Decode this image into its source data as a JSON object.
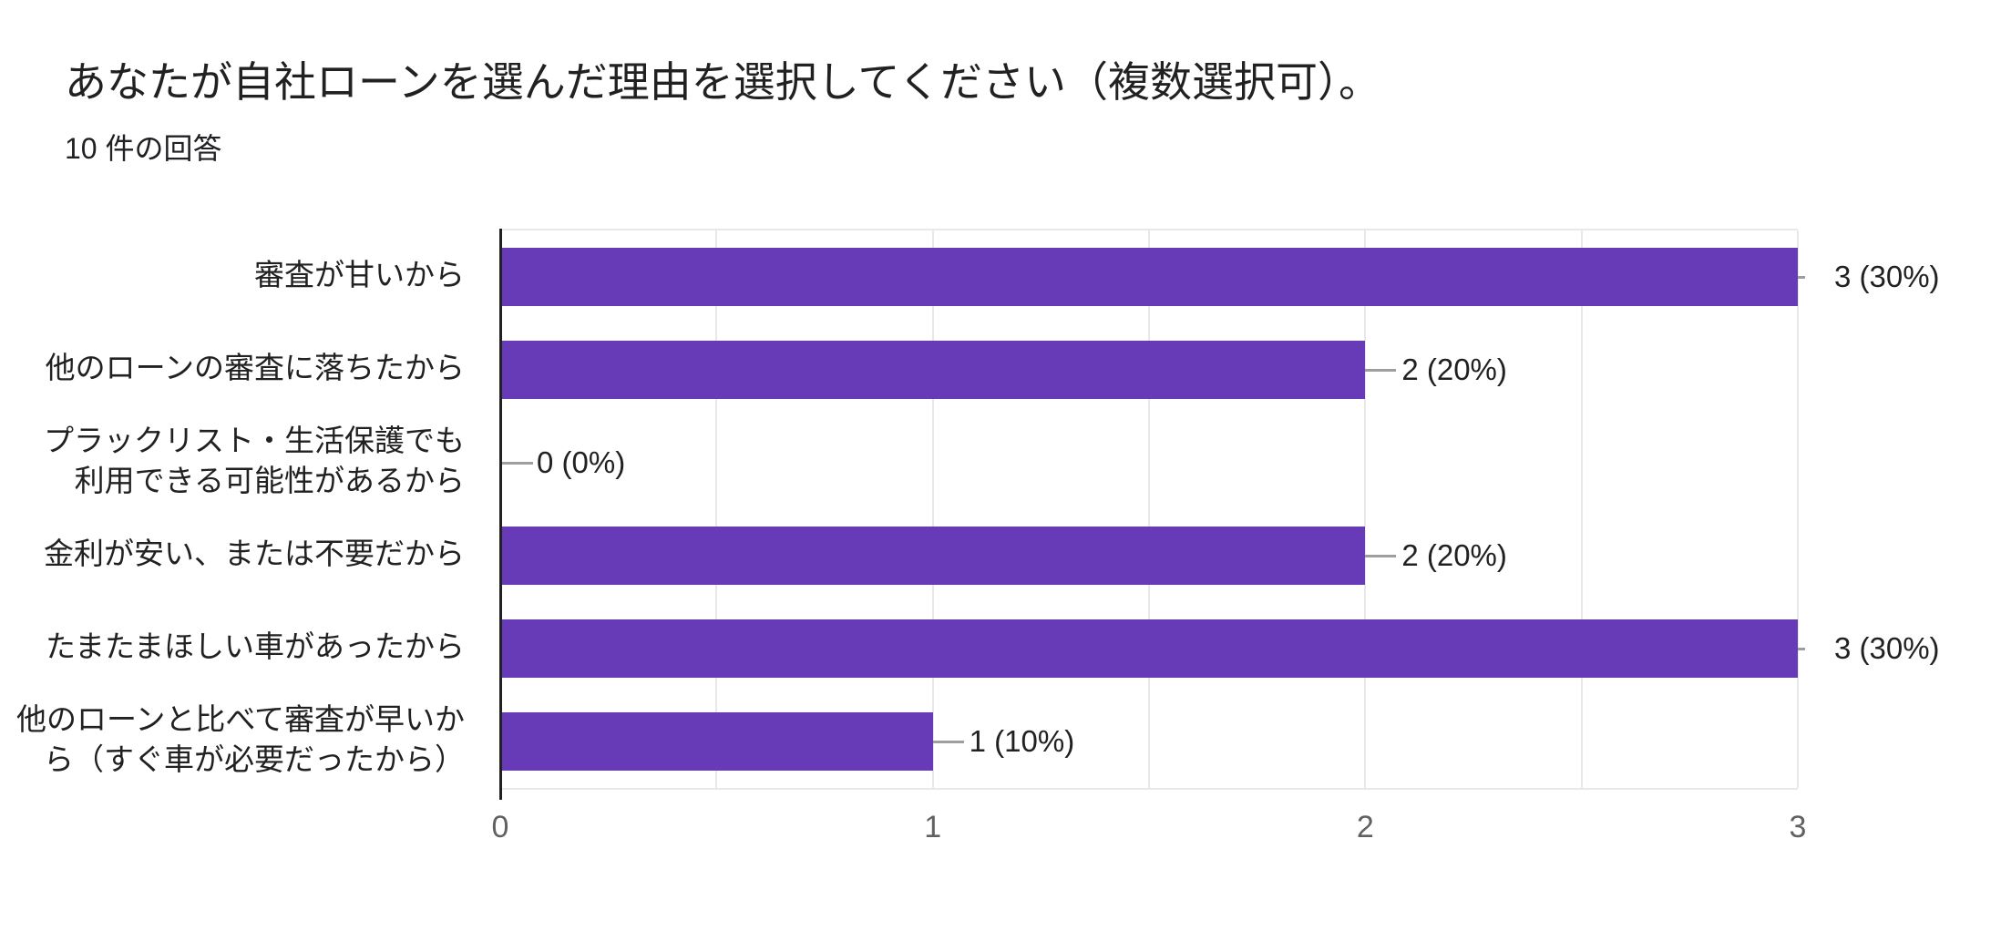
{
  "chart_data": {
    "type": "bar",
    "orientation": "horizontal",
    "title": "あなたが自社ローンを選んだ理由を選択してください（複数選択可）。",
    "subtitle": "10 件の回答",
    "categories": [
      "審査が甘いから",
      "他のローンの審査に落ちたから",
      "プラックリスト・生活保護でも利用できる可能性があるから",
      "金利が安い、または不要だから",
      "たまたまほしい車があったから",
      "他のローンと比べて審査が早いから（すぐ車が必要だったから）"
    ],
    "category_lines": [
      [
        "審査が甘いから"
      ],
      [
        "他のローンの審査に落ちたから"
      ],
      [
        "プラックリスト・生活保護でも",
        "利用できる可能性があるから"
      ],
      [
        "金利が安い、または不要だから"
      ],
      [
        "たまたまほしい車があったから"
      ],
      [
        "他のローンと比べて審査が早いか",
        "ら（すぐ車が必要だったから）"
      ]
    ],
    "values": [
      3,
      2,
      0,
      2,
      3,
      1
    ],
    "value_labels": [
      "3 (30%)",
      "2 (20%)",
      "0 (0%)",
      "2 (20%)",
      "3 (30%)",
      "1 (10%)"
    ],
    "x_ticks": [
      "0",
      "1",
      "2",
      "3"
    ],
    "xlim": [
      0,
      3
    ],
    "gridline_step": 0.5,
    "grid": true,
    "legend": "none",
    "colors": {
      "bar": "#673ab7",
      "axis": "#212121",
      "gridline": "#e8e8e8",
      "stem": "#9e9e9e",
      "tick_label": "#616161",
      "text": "#212121"
    }
  }
}
